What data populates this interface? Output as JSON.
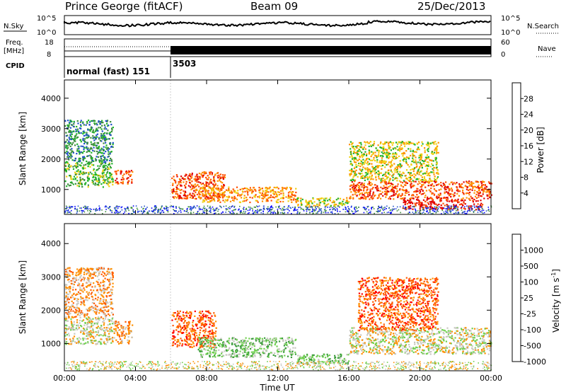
{
  "header": {
    "station": "Prince George (fitACF)",
    "beam": "Beam 09",
    "date": "25/Dec/2013"
  },
  "top_panels": {
    "nsky_label": "N.Sky",
    "nsky_ticks": [
      "10^5",
      "10^0"
    ],
    "nsearch_label": "N.Search",
    "nsearch_ticks": [
      "10^5",
      "10^0"
    ],
    "freq_label": "Freq.",
    "freq_unit": "[MHz]",
    "freq_ticks": [
      "18",
      "8"
    ],
    "nave_label": "Nave",
    "nave_ticks": [
      "60",
      "0"
    ],
    "cpid_label": "CPID",
    "cpid_mode_1": "normal (fast) 151",
    "cpid_mode_2": "3503"
  },
  "colors": {
    "power": [
      "#0000ff",
      "#2050c8",
      "#3c8c3c",
      "#20b428",
      "#f0d010",
      "#ff9000",
      "#ff5000",
      "#e00000"
    ],
    "velocity": [
      "#1830c8",
      "#2878b0",
      "#3c9c3c",
      "#70d050",
      "#c8c8c0",
      "#ff9000",
      "#ff5a00",
      "#ff0000"
    ]
  },
  "chart_data": [
    {
      "type": "heatmap",
      "panel": "power",
      "ylabel": "Slant Range [km]",
      "yticks": [
        1000,
        2000,
        3000,
        4000
      ],
      "ylim": [
        180,
        4600
      ],
      "colorbar_label": "Power [dB]",
      "colorbar_ticks": [
        "4",
        "8",
        "12",
        "16",
        "20",
        "24",
        "28"
      ],
      "xlim": [
        0,
        24
      ],
      "data_regions": [
        {
          "t": [
            0.0,
            2.7
          ],
          "r": [
            1100,
            1900
          ],
          "level": 3
        },
        {
          "t": [
            0.0,
            2.7
          ],
          "r": [
            1900,
            3300
          ],
          "level": 2
        },
        {
          "t": [
            2.8,
            3.8
          ],
          "r": [
            1200,
            1650
          ],
          "level": 6
        },
        {
          "t": [
            6.0,
            9.0
          ],
          "r": [
            700,
            1600
          ],
          "level": 6
        },
        {
          "t": [
            7.5,
            13.0
          ],
          "r": [
            600,
            1100
          ],
          "level": 5
        },
        {
          "t": [
            13.0,
            16.0
          ],
          "r": [
            450,
            750
          ],
          "level": 4
        },
        {
          "t": [
            16.0,
            24.0
          ],
          "r": [
            700,
            1300
          ],
          "level": 6
        },
        {
          "t": [
            19.0,
            23.5
          ],
          "r": [
            350,
            700
          ],
          "level": 7
        },
        {
          "t": [
            16.0,
            21.0
          ],
          "r": [
            1300,
            2600
          ],
          "level": 4
        }
      ]
    },
    {
      "type": "heatmap",
      "panel": "velocity",
      "ylabel": "Slant Range [km]",
      "yticks": [
        1000,
        2000,
        3000,
        4000
      ],
      "ylim": [
        180,
        4600
      ],
      "colorbar_label": "Velocity [m s^-1]",
      "colorbar_ticks": [
        "1000",
        "500",
        "100",
        "25",
        "-25",
        "-100",
        "-500",
        "-1000"
      ],
      "xlabel": "Time UT",
      "xticks": [
        "00:00",
        "04:00",
        "08:00",
        "12:00",
        "16:00",
        "20:00",
        "00:00"
      ],
      "xlim": [
        0,
        24
      ],
      "data_regions": [
        {
          "t": [
            0.0,
            2.7
          ],
          "r": [
            1000,
            1800
          ],
          "level": 4
        },
        {
          "t": [
            0.0,
            2.7
          ],
          "r": [
            1800,
            3300
          ],
          "level": 5
        },
        {
          "t": [
            2.7,
            3.8
          ],
          "r": [
            1000,
            1700
          ],
          "level": 5
        },
        {
          "t": [
            6.0,
            8.5
          ],
          "r": [
            900,
            2000
          ],
          "level": 6
        },
        {
          "t": [
            7.5,
            13.0
          ],
          "r": [
            600,
            1200
          ],
          "level": 3
        },
        {
          "t": [
            13.0,
            16.0
          ],
          "r": [
            400,
            700
          ],
          "level": 3
        },
        {
          "t": [
            16.0,
            24.0
          ],
          "r": [
            700,
            1500
          ],
          "level": 4
        },
        {
          "t": [
            16.5,
            21.0
          ],
          "r": [
            1400,
            3000
          ],
          "level": 6
        }
      ]
    }
  ]
}
